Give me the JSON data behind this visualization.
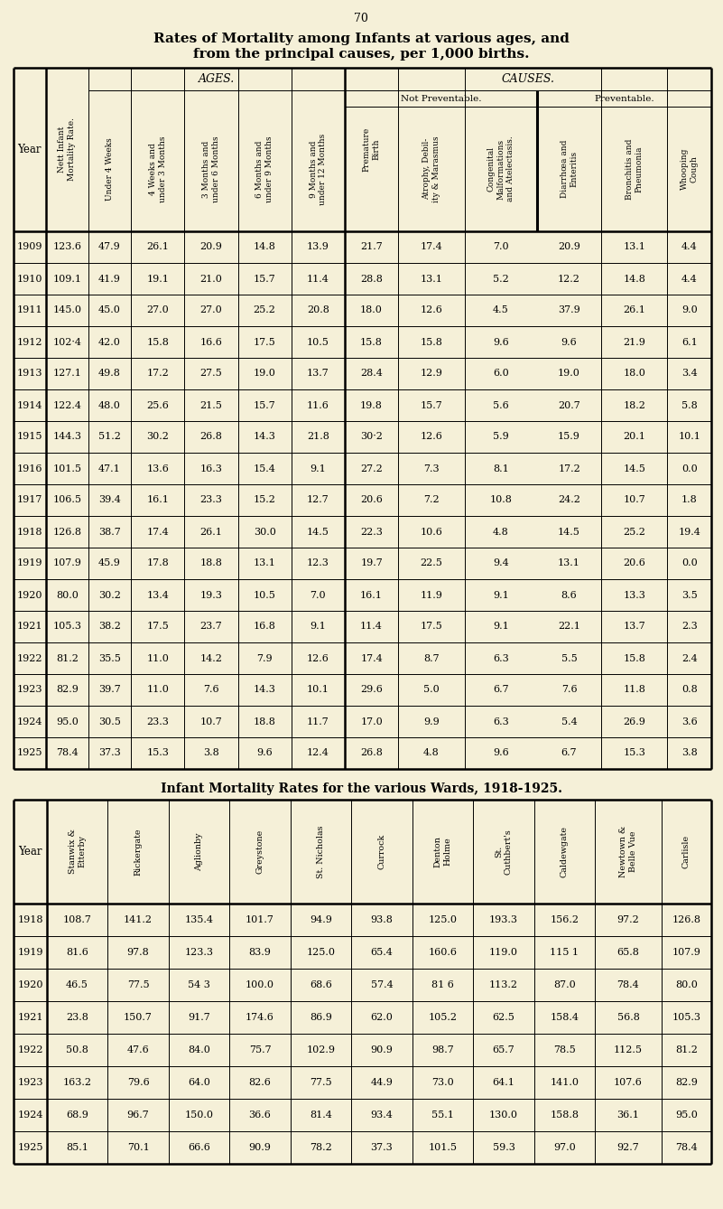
{
  "page_number": "70",
  "title1": "Rates of Mortality among Infants at various ages, and",
  "title2": "from the principal causes, per 1,000 births.",
  "bg_color": "#f5f0d8",
  "table1": {
    "col_labels": [
      "Year",
      "Nett Infant\nMortality Rate.",
      "Under 4 Weeks",
      "4 Weeks and\nunder 3 Months",
      "3 Months and\nunder 6 Months",
      "6 Months and\nunder 9 Months",
      "9 Months and\nunder 12 Months",
      "Premature\nBirth",
      "Atrophy, Debil-\nity & Marasmus",
      "Congenital\nMalformations\nand Atelectasis.",
      "Diarrhœa and\nEnteritis",
      "Bronchitis and\nPneumonia",
      "Whooping\nCough"
    ],
    "rows": [
      [
        "1909",
        "123.6",
        "47.9",
        "26.1",
        "20.9",
        "14.8",
        "13.9",
        "21.7",
        "17.4",
        "7.0",
        "20.9",
        "13.1",
        "4.4"
      ],
      [
        "1910",
        "109.1",
        "41.9",
        "19.1",
        "21.0",
        "15.7",
        "11.4",
        "28.8",
        "13.1",
        "5.2",
        "12.2",
        "14.8",
        "4.4"
      ],
      [
        "1911",
        "145.0",
        "45.0",
        "27.0",
        "27.0",
        "25.2",
        "20.8",
        "18.0",
        "12.6",
        "4.5",
        "37.9",
        "26.1",
        "9.0"
      ],
      [
        "1912",
        "102·4",
        "42.0",
        "15.8",
        "16.6",
        "17.5",
        "10.5",
        "15.8",
        "15.8",
        "9.6",
        "9.6",
        "21.9",
        "6.1"
      ],
      [
        "1913",
        "127.1",
        "49.8",
        "17.2",
        "27.5",
        "19.0",
        "13.7",
        "28.4",
        "12.9",
        "6.0",
        "19.0",
        "18.0",
        "3.4"
      ],
      [
        "1914",
        "122.4",
        "48.0",
        "25.6",
        "21.5",
        "15.7",
        "11.6",
        "19.8",
        "15.7",
        "5.6",
        "20.7",
        "18.2",
        "5.8"
      ],
      [
        "1915",
        "144.3",
        "51.2",
        "30.2",
        "26.8",
        "14.3",
        "21.8",
        "30·2",
        "12.6",
        "5.9",
        "15.9",
        "20.1",
        "10.1"
      ],
      [
        "1916",
        "101.5",
        "47.1",
        "13.6",
        "16.3",
        "15.4",
        "9.1",
        "27.2",
        "7.3",
        "8.1",
        "17.2",
        "14.5",
        "0.0"
      ],
      [
        "1917",
        "106.5",
        "39.4",
        "16.1",
        "23.3",
        "15.2",
        "12.7",
        "20.6",
        "7.2",
        "10.8",
        "24.2",
        "10.7",
        "1.8"
      ],
      [
        "1918",
        "126.8",
        "38.7",
        "17.4",
        "26.1",
        "30.0",
        "14.5",
        "22.3",
        "10.6",
        "4.8",
        "14.5",
        "25.2",
        "19.4"
      ],
      [
        "1919",
        "107.9",
        "45.9",
        "17.8",
        "18.8",
        "13.1",
        "12.3",
        "19.7",
        "22.5",
        "9.4",
        "13.1",
        "20.6",
        "0.0"
      ],
      [
        "1920",
        "80.0",
        "30.2",
        "13.4",
        "19.3",
        "10.5",
        "7.0",
        "16.1",
        "11.9",
        "9.1",
        "8.6",
        "13.3",
        "3.5"
      ],
      [
        "1921",
        "105.3",
        "38.2",
        "17.5",
        "23.7",
        "16.8",
        "9.1",
        "11.4",
        "17.5",
        "9.1",
        "22.1",
        "13.7",
        "2.3"
      ],
      [
        "1922",
        "81.2",
        "35.5",
        "11.0",
        "14.2",
        "7.9",
        "12.6",
        "17.4",
        "8.7",
        "6.3",
        "5.5",
        "15.8",
        "2.4"
      ],
      [
        "1923",
        "82.9",
        "39.7",
        "11.0",
        "7.6",
        "14.3",
        "10.1",
        "29.6",
        "5.0",
        "6.7",
        "7.6",
        "11.8",
        "0.8"
      ],
      [
        "1924",
        "95.0",
        "30.5",
        "23.3",
        "10.7",
        "18.8",
        "11.7",
        "17.0",
        "9.9",
        "6.3",
        "5.4",
        "26.9",
        "3.6"
      ],
      [
        "1925",
        "78.4",
        "37.3",
        "15.3",
        "3.8",
        "9.6",
        "12.4",
        "26.8",
        "4.8",
        "9.6",
        "6.7",
        "15.3",
        "3.8"
      ]
    ]
  },
  "table2_title": "Infant Mortality Rates for the various Wards, 1918-1925.",
  "table2": {
    "col_labels": [
      "Year",
      "Stanwix &\nEtterby",
      "Rickergate",
      "Aglionby",
      "Greystone",
      "St. Nicholas",
      "Currock",
      "Denton\nHolme",
      "St.\nCuthbert's",
      "Caldewgate",
      "Newtown &\nBelle Vue",
      "Carlisle"
    ],
    "rows": [
      [
        "1918",
        "108.7",
        "141.2",
        "135.4",
        "101.7",
        "94.9",
        "93.8",
        "125.0",
        "193.3",
        "156.2",
        "97.2",
        "126.8"
      ],
      [
        "1919",
        "81.6",
        "97.8",
        "123.3",
        "83.9",
        "125.0",
        "65.4",
        "160.6",
        "119.0",
        "115 1",
        "65.8",
        "107.9"
      ],
      [
        "1920",
        "46.5",
        "77.5",
        "54 3",
        "100.0",
        "68.6",
        "57.4",
        "81 6",
        "113.2",
        "87.0",
        "78.4",
        "80.0"
      ],
      [
        "1921",
        "23.8",
        "150.7",
        "91.7",
        "174.6",
        "86.9",
        "62.0",
        "105.2",
        "62.5",
        "158.4",
        "56.8",
        "105.3"
      ],
      [
        "1922",
        "50.8",
        "47.6",
        "84.0",
        "75.7",
        "102.9",
        "90.9",
        "98.7",
        "65.7",
        "78.5",
        "112.5",
        "81.2"
      ],
      [
        "1923",
        "163.2",
        "79.6",
        "64.0",
        "82.6",
        "77.5",
        "44.9",
        "73.0",
        "64.1",
        "141.0",
        "107.6",
        "82.9"
      ],
      [
        "1924",
        "68.9",
        "96.7",
        "150.0",
        "36.6",
        "81.4",
        "93.4",
        "55.1",
        "130.0",
        "158.8",
        "36.1",
        "95.0"
      ],
      [
        "1925",
        "85.1",
        "70.1",
        "66.6",
        "90.9",
        "78.2",
        "37.3",
        "101.5",
        "59.3",
        "97.0",
        "92.7",
        "78.4"
      ]
    ]
  }
}
